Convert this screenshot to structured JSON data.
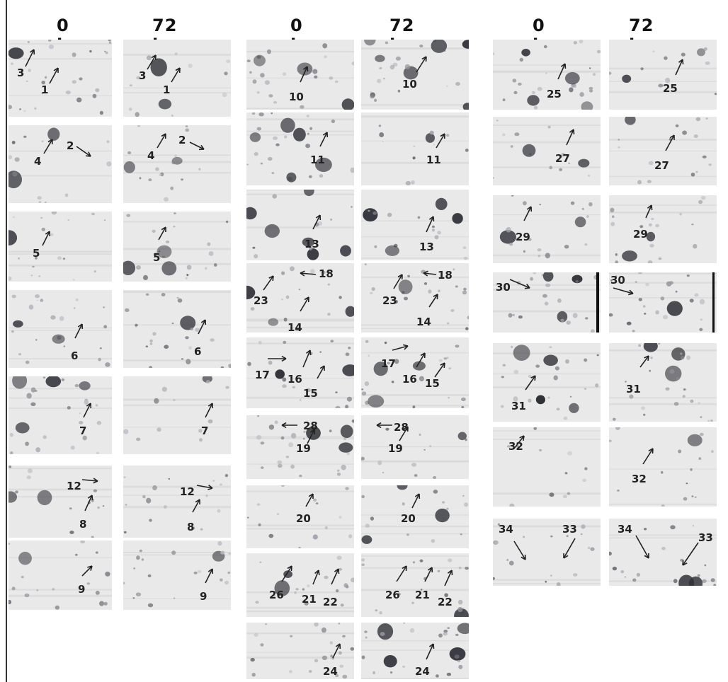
{
  "headers": [
    {
      "text": "0 h"
    },
    {
      "text": "72 h"
    },
    {
      "text": "0 h"
    },
    {
      "text": "72 h"
    },
    {
      "text": "0 h"
    },
    {
      "text": "72 h"
    }
  ],
  "panels": [
    {
      "id": "c1r1a",
      "labels": [
        {
          "t": "3"
        },
        {
          "t": "1"
        }
      ]
    },
    {
      "id": "c1r1b",
      "labels": [
        {
          "t": "3"
        },
        {
          "t": "1"
        }
      ]
    },
    {
      "id": "c1r2a",
      "labels": [
        {
          "t": "2"
        },
        {
          "t": "4"
        }
      ]
    },
    {
      "id": "c1r2b",
      "labels": [
        {
          "t": "2"
        },
        {
          "t": "4"
        }
      ]
    },
    {
      "id": "c1r3a",
      "labels": [
        {
          "t": "5"
        }
      ]
    },
    {
      "id": "c1r3b",
      "labels": [
        {
          "t": "5"
        }
      ]
    },
    {
      "id": "c1r4a",
      "labels": [
        {
          "t": "6"
        }
      ]
    },
    {
      "id": "c1r4b",
      "labels": [
        {
          "t": "6"
        }
      ]
    },
    {
      "id": "c1r5a",
      "labels": [
        {
          "t": "7"
        }
      ]
    },
    {
      "id": "c1r5b",
      "labels": [
        {
          "t": "7"
        }
      ]
    },
    {
      "id": "c1r6a",
      "labels": [
        {
          "t": "12"
        },
        {
          "t": "8"
        }
      ]
    },
    {
      "id": "c1r6b",
      "labels": [
        {
          "t": "12"
        },
        {
          "t": "8"
        }
      ]
    },
    {
      "id": "c1r7a",
      "labels": [
        {
          "t": "9"
        }
      ]
    },
    {
      "id": "c1r7b",
      "labels": [
        {
          "t": "9"
        }
      ]
    },
    {
      "id": "c2r1a",
      "labels": [
        {
          "t": "10"
        }
      ]
    },
    {
      "id": "c2r1b",
      "labels": [
        {
          "t": "10"
        }
      ]
    },
    {
      "id": "c2r2a",
      "labels": [
        {
          "t": "11"
        }
      ]
    },
    {
      "id": "c2r2b",
      "labels": [
        {
          "t": "11"
        }
      ]
    },
    {
      "id": "c2r3a",
      "labels": [
        {
          "t": "13"
        }
      ]
    },
    {
      "id": "c2r3b",
      "labels": [
        {
          "t": "13"
        }
      ]
    },
    {
      "id": "c2r4a",
      "labels": [
        {
          "t": "18"
        },
        {
          "t": "23"
        },
        {
          "t": "14"
        }
      ]
    },
    {
      "id": "c2r4b",
      "labels": [
        {
          "t": "18"
        },
        {
          "t": "23"
        },
        {
          "t": "14"
        }
      ]
    },
    {
      "id": "c2r5a",
      "labels": [
        {
          "t": "17"
        },
        {
          "t": "16"
        },
        {
          "t": "15"
        }
      ]
    },
    {
      "id": "c2r5b",
      "labels": [
        {
          "t": "17"
        },
        {
          "t": "16"
        },
        {
          "t": "15"
        }
      ]
    },
    {
      "id": "c2r6a",
      "labels": [
        {
          "t": "28"
        },
        {
          "t": "19"
        }
      ]
    },
    {
      "id": "c2r6b",
      "labels": [
        {
          "t": "28"
        },
        {
          "t": "19"
        }
      ]
    },
    {
      "id": "c2r7a",
      "labels": [
        {
          "t": "20"
        }
      ]
    },
    {
      "id": "c2r7b",
      "labels": [
        {
          "t": "20"
        }
      ]
    },
    {
      "id": "c2r8a",
      "labels": [
        {
          "t": "26"
        },
        {
          "t": "21"
        },
        {
          "t": "22"
        }
      ]
    },
    {
      "id": "c2r8b",
      "labels": [
        {
          "t": "26"
        },
        {
          "t": "21"
        },
        {
          "t": "22"
        }
      ]
    },
    {
      "id": "c2r9a",
      "labels": [
        {
          "t": "24"
        }
      ]
    },
    {
      "id": "c2r9b",
      "labels": [
        {
          "t": "24"
        }
      ]
    },
    {
      "id": "c3r1a",
      "labels": [
        {
          "t": "25"
        }
      ]
    },
    {
      "id": "c3r1b",
      "labels": [
        {
          "t": "25"
        }
      ]
    },
    {
      "id": "c3r2a",
      "labels": [
        {
          "t": "27"
        }
      ]
    },
    {
      "id": "c3r2b",
      "labels": [
        {
          "t": "27"
        }
      ]
    },
    {
      "id": "c3r3a",
      "labels": [
        {
          "t": "29"
        }
      ]
    },
    {
      "id": "c3r3b",
      "labels": [
        {
          "t": "29"
        }
      ]
    },
    {
      "id": "c3r4a",
      "labels": [
        {
          "t": "30"
        }
      ]
    },
    {
      "id": "c3r4b",
      "labels": [
        {
          "t": "30"
        }
      ]
    },
    {
      "id": "c3r5a",
      "labels": [
        {
          "t": "31"
        }
      ]
    },
    {
      "id": "c3r5b",
      "labels": [
        {
          "t": "31"
        }
      ]
    },
    {
      "id": "c3r6a",
      "labels": [
        {
          "t": "32"
        }
      ]
    },
    {
      "id": "c3r6b",
      "labels": [
        {
          "t": "32"
        }
      ]
    },
    {
      "id": "c3r7a",
      "labels": [
        {
          "t": "34"
        },
        {
          "t": "33"
        }
      ]
    },
    {
      "id": "c3r7b",
      "labels": [
        {
          "t": "34"
        },
        {
          "t": "33"
        }
      ]
    }
  ]
}
